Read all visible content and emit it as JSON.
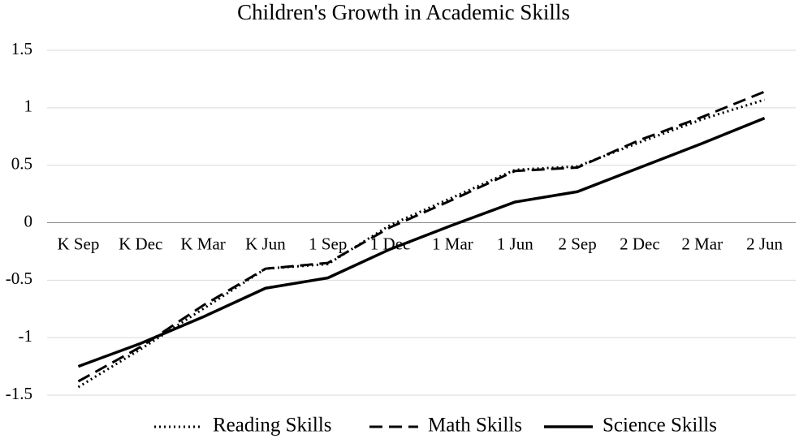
{
  "chart_data": {
    "type": "line",
    "title": "Children's Growth in Academic Skills",
    "categories": [
      "K Sep",
      "K Dec",
      "K Mar",
      "K Jun",
      "1 Sep",
      "1 Dec",
      "1 Mar",
      "1 Jun",
      "2 Sep",
      "2 Dec",
      "2 Mar",
      "2 Jun"
    ],
    "series": [
      {
        "name": "Reading Skills",
        "color": "#000000",
        "dash": "dotted",
        "values": [
          -1.43,
          -1.1,
          -0.75,
          -0.4,
          -0.36,
          -0.02,
          0.22,
          0.46,
          0.49,
          0.7,
          0.9,
          1.07
        ]
      },
      {
        "name": "Math Skills",
        "color": "#000000",
        "dash": "dashed",
        "values": [
          -1.38,
          -1.08,
          -0.72,
          -0.4,
          -0.35,
          -0.04,
          0.2,
          0.45,
          0.48,
          0.72,
          0.92,
          1.14
        ]
      },
      {
        "name": "Science Skills",
        "color": "#000000",
        "dash": "solid",
        "values": [
          -1.25,
          -1.05,
          -0.82,
          -0.57,
          -0.48,
          -0.23,
          -0.02,
          0.18,
          0.27,
          0.48,
          0.69,
          0.91
        ]
      }
    ],
    "ylim": [
      -1.5,
      1.5
    ],
    "yticks": [
      -1.5,
      -1,
      -0.5,
      0,
      0.5,
      1,
      1.5
    ],
    "grid": true,
    "legend": "bottom"
  }
}
